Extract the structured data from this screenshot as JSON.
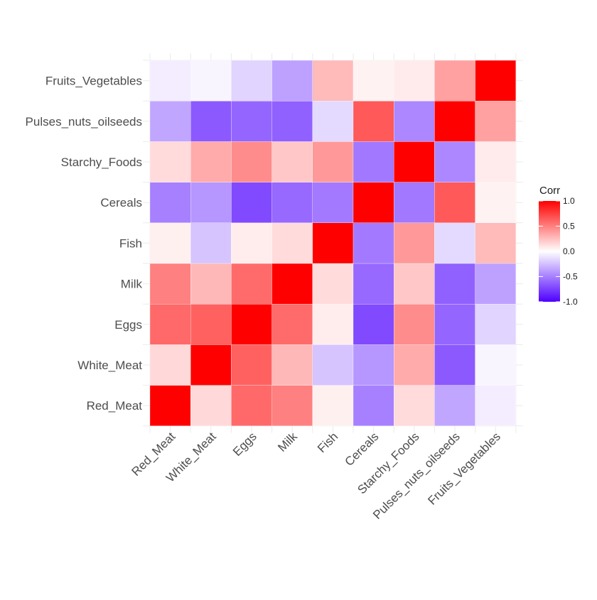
{
  "chart_data": {
    "type": "heatmap",
    "title": "",
    "xlabel": "",
    "ylabel": "",
    "variables": [
      "Red_Meat",
      "White_Meat",
      "Eggs",
      "Milk",
      "Fish",
      "Cereals",
      "Starchy_Foods",
      "Pulses_nuts_oilseeds",
      "Fruits_Vegetables"
    ],
    "x": [
      "Red_Meat",
      "White_Meat",
      "Eggs",
      "Milk",
      "Fish",
      "Cereals",
      "Starchy_Foods",
      "Pulses_nuts_oilseeds",
      "Fruits_Vegetables"
    ],
    "y": [
      "Red_Meat",
      "White_Meat",
      "Eggs",
      "Milk",
      "Fish",
      "Cereals",
      "Starchy_Foods",
      "Pulses_nuts_oilseeds",
      "Fruits_Vegetables"
    ],
    "matrix": [
      [
        1.0,
        0.15,
        0.59,
        0.5,
        0.06,
        -0.5,
        0.14,
        -0.35,
        -0.07
      ],
      [
        0.15,
        1.0,
        0.62,
        0.28,
        -0.23,
        -0.41,
        0.33,
        -0.65,
        -0.04
      ],
      [
        0.59,
        0.62,
        1.0,
        0.58,
        0.07,
        -0.71,
        0.45,
        -0.6,
        -0.17
      ],
      [
        0.5,
        0.28,
        0.58,
        1.0,
        0.14,
        -0.59,
        0.22,
        -0.62,
        -0.37
      ],
      [
        0.06,
        -0.23,
        0.07,
        0.14,
        1.0,
        -0.52,
        0.4,
        -0.15,
        0.27
      ],
      [
        -0.5,
        -0.41,
        -0.71,
        -0.59,
        -0.52,
        1.0,
        -0.53,
        0.65,
        0.05
      ],
      [
        0.14,
        0.33,
        0.45,
        0.22,
        0.4,
        -0.53,
        1.0,
        -0.47,
        0.08
      ],
      [
        -0.35,
        -0.65,
        -0.6,
        -0.62,
        -0.15,
        0.65,
        -0.47,
        1.0,
        0.37
      ],
      [
        -0.07,
        -0.04,
        -0.17,
        -0.37,
        0.27,
        0.05,
        0.08,
        0.37,
        1.0
      ]
    ],
    "legend": {
      "title": "Corr",
      "ticks": [
        1.0,
        0.5,
        0.0,
        -0.5,
        -1.0
      ],
      "tick_labels": [
        "1.0",
        "0.5",
        "0.0",
        "-0.5",
        "-1.0"
      ],
      "placement": "right",
      "range": [
        -1.0,
        1.0
      ]
    },
    "colors": {
      "low": "#4e00ff",
      "mid": "#ffffff",
      "high": "#ff0000"
    },
    "grid": true
  }
}
